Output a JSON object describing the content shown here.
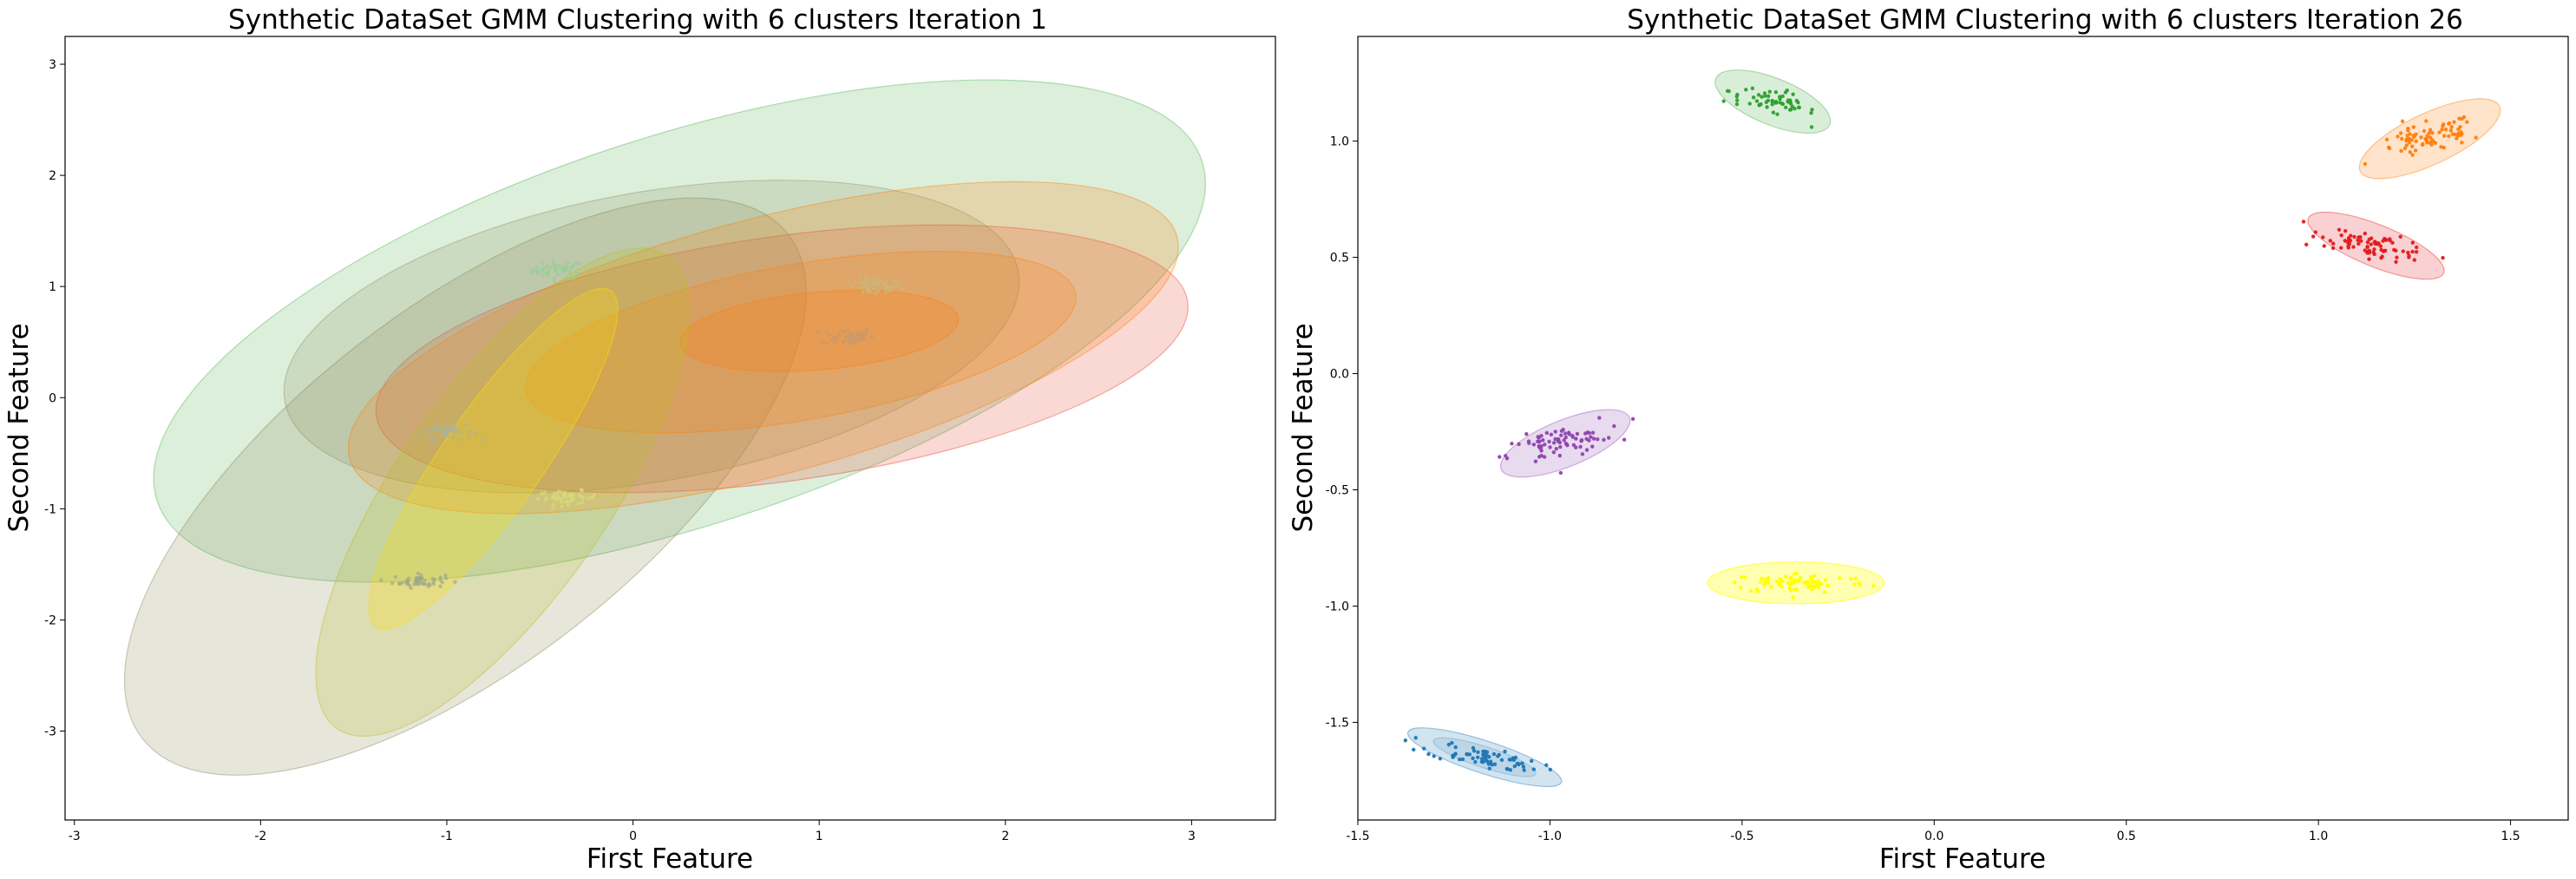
{
  "chart_data": [
    {
      "type": "scatter",
      "title": "Synthetic DataSet GMM Clustering with 6 clusters Iteration 1",
      "xlabel": "First Feature",
      "ylabel": "Second Feature",
      "xlim": [
        -3.05,
        3.45
      ],
      "ylim": [
        -3.8,
        3.25
      ],
      "xticks": [
        -3,
        -2,
        -1,
        0,
        1,
        2,
        3
      ],
      "yticks": [
        -3,
        -2,
        -1,
        0,
        1,
        2,
        3
      ],
      "grid": false,
      "clusters": [
        {
          "color": "#9acd9a",
          "center": [
            -0.4,
            1.15
          ],
          "sd": [
            0.07,
            0.04
          ],
          "n": 50
        },
        {
          "color": "#c7b87a",
          "center": [
            1.3,
            1.0
          ],
          "sd": [
            0.07,
            0.04
          ],
          "n": 50
        },
        {
          "color": "#c59a6e",
          "center": [
            1.15,
            0.55
          ],
          "sd": [
            0.07,
            0.04
          ],
          "n": 50
        },
        {
          "color": "#a8b49c",
          "center": [
            -1.0,
            -0.3
          ],
          "sd": [
            0.07,
            0.04
          ],
          "n": 50
        },
        {
          "color": "#9aa88a",
          "center": [
            -1.15,
            -1.65
          ],
          "sd": [
            0.07,
            0.03
          ],
          "n": 50
        },
        {
          "color": "#d8dc78",
          "center": [
            -0.35,
            -0.9
          ],
          "sd": [
            0.08,
            0.03
          ],
          "n": 50
        }
      ],
      "ellipses": [
        {
          "color": "#2ca02c",
          "opacity": 0.17,
          "cx": 0.25,
          "cy": 0.6,
          "rx": 2.95,
          "ry": 1.75,
          "angle": 18
        },
        {
          "color": "#e74c3c",
          "opacity": 0.22,
          "cx": 0.8,
          "cy": 0.35,
          "rx": 2.2,
          "ry": 1.1,
          "angle": 8
        },
        {
          "color": "#8b8b5c",
          "opacity": 0.22,
          "cx": -0.9,
          "cy": -0.8,
          "rx": 2.2,
          "ry": 1.6,
          "angle": 38
        },
        {
          "color": "#8b8b5c",
          "opacity": 0.2,
          "cx": 0.1,
          "cy": 0.55,
          "rx": 2.0,
          "ry": 1.3,
          "angle": 10
        },
        {
          "color": "#ff7f0e",
          "opacity": 0.22,
          "cx": 0.7,
          "cy": 0.45,
          "rx": 2.3,
          "ry": 1.15,
          "angle": 15
        },
        {
          "color": "#ff7f0e",
          "opacity": 0.22,
          "cx": 0.9,
          "cy": 0.5,
          "rx": 1.5,
          "ry": 0.7,
          "angle": 10
        },
        {
          "color": "#ff7f0e",
          "opacity": 0.25,
          "cx": 1.0,
          "cy": 0.6,
          "rx": 0.75,
          "ry": 0.35,
          "angle": 5
        },
        {
          "color": "#bcbd22",
          "opacity": 0.22,
          "cx": -0.7,
          "cy": -0.85,
          "rx": 1.55,
          "ry": 0.95,
          "angle": 55
        },
        {
          "color": "#ffdd00",
          "opacity": 0.25,
          "cx": -0.75,
          "cy": -0.55,
          "rx": 1.1,
          "ry": 0.45,
          "angle": 55
        }
      ]
    },
    {
      "type": "scatter",
      "title": "Synthetic DataSet GMM Clustering with 6 clusters Iteration 26",
      "xlabel": "First Feature",
      "ylabel": "Second Feature",
      "xlim": [
        -1.5,
        1.65
      ],
      "ylim": [
        -1.92,
        1.45
      ],
      "xticks": [
        -1.5,
        -1.0,
        -0.5,
        0.0,
        0.5,
        1.0,
        1.5
      ],
      "xticklabels": [
        "-1.5",
        "-1.0",
        "-0.5",
        "0.0",
        "0.5",
        "1.0",
        "1.5"
      ],
      "yticks": [
        -1.5,
        -1.0,
        -0.5,
        0.0,
        0.5,
        1.0
      ],
      "yticklabels": [
        "-1.5",
        "-1.0",
        "-0.5",
        "0.0",
        "0.5",
        "1.0"
      ],
      "grid": false,
      "clusters": [
        {
          "color": "#2ca02c",
          "center": [
            -0.42,
            1.17
          ],
          "sd": [
            0.06,
            0.025
          ],
          "n": 60,
          "angle": -22
        },
        {
          "color": "#ff7f0e",
          "center": [
            1.29,
            1.01
          ],
          "sd": [
            0.075,
            0.03
          ],
          "n": 80,
          "angle": 25
        },
        {
          "color": "#e31a1c",
          "center": [
            1.15,
            0.55
          ],
          "sd": [
            0.075,
            0.025
          ],
          "n": 80,
          "angle": -22
        },
        {
          "color": "#8e44ad",
          "center": [
            -0.98,
            -0.3
          ],
          "sd": [
            0.07,
            0.03
          ],
          "n": 80,
          "angle": 22
        },
        {
          "color": "#ffff00",
          "center": [
            -0.35,
            -0.9
          ],
          "sd": [
            0.09,
            0.022
          ],
          "n": 80,
          "angle": 0
        },
        {
          "color": "#1f77b4",
          "center": [
            -1.17,
            -1.65
          ],
          "sd": [
            0.075,
            0.022
          ],
          "n": 70,
          "angle": -18
        }
      ],
      "ellipses": [
        {
          "color": "#2ca02c",
          "opacity": 0.18,
          "cx": -0.42,
          "cy": 1.17,
          "rx": 0.16,
          "ry": 0.1,
          "angle": -22
        },
        {
          "color": "#ff7f0e",
          "opacity": 0.22,
          "cx": 1.29,
          "cy": 1.01,
          "rx": 0.2,
          "ry": 0.11,
          "angle": 25
        },
        {
          "color": "#e31a1c",
          "opacity": 0.2,
          "cx": 1.15,
          "cy": 0.55,
          "rx": 0.19,
          "ry": 0.09,
          "angle": -22
        },
        {
          "color": "#8e44ad",
          "opacity": 0.2,
          "cx": -0.96,
          "cy": -0.3,
          "rx": 0.18,
          "ry": 0.1,
          "angle": 22
        },
        {
          "color": "#ffff00",
          "opacity": 0.3,
          "cx": -0.36,
          "cy": -0.9,
          "rx": 0.23,
          "ry": 0.09,
          "angle": 0
        },
        {
          "color": "#1f77b4",
          "opacity": 0.2,
          "cx": -1.17,
          "cy": -1.65,
          "rx": 0.21,
          "ry": 0.07,
          "angle": -18
        },
        {
          "color": "#1f77b4",
          "opacity": 0.12,
          "cx": -1.17,
          "cy": -1.65,
          "rx": 0.14,
          "ry": 0.045,
          "angle": -18
        }
      ]
    }
  ]
}
